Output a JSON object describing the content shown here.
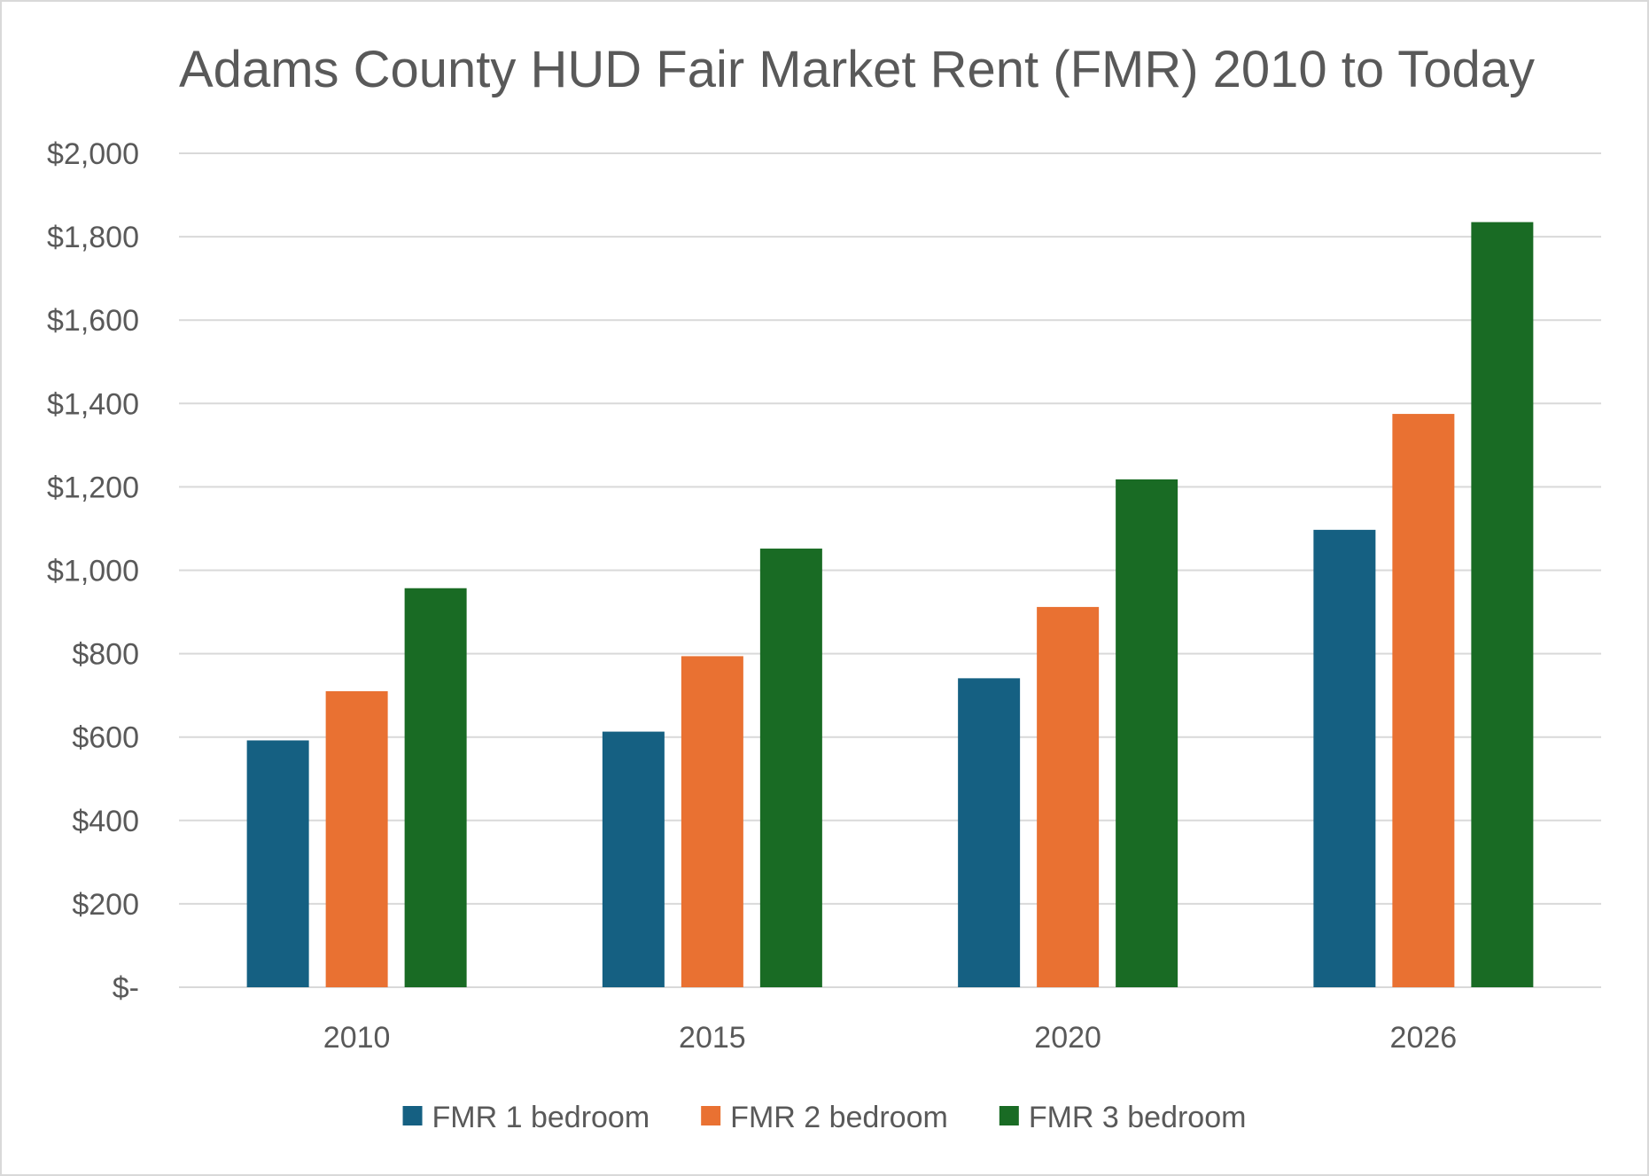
{
  "chart_data": {
    "type": "bar",
    "title": "Adams County HUD Fair Market Rent (FMR) 2010 to Today",
    "categories": [
      "2010",
      "2015",
      "2020",
      "2026"
    ],
    "series": [
      {
        "name": "FMR 1 bedroom",
        "color": "#156082",
        "values": [
          592,
          613,
          741,
          1097
        ]
      },
      {
        "name": "FMR 2 bedroom",
        "color": "#E97132",
        "values": [
          710,
          794,
          912,
          1375
        ]
      },
      {
        "name": "FMR 3 bedroom",
        "color": "#196B24",
        "values": [
          957,
          1052,
          1218,
          1835
        ]
      }
    ],
    "ylim": [
      0,
      2000
    ],
    "yticks": [
      0,
      200,
      400,
      600,
      800,
      1000,
      1200,
      1400,
      1600,
      1800,
      2000
    ],
    "ytick_labels": [
      "$-",
      "$200",
      "$400",
      "$600",
      "$800",
      "$1,000",
      "$1,200",
      "$1,400",
      "$1,600",
      "$1,800",
      "$2,000"
    ],
    "grid": true,
    "legend_position": "bottom"
  }
}
